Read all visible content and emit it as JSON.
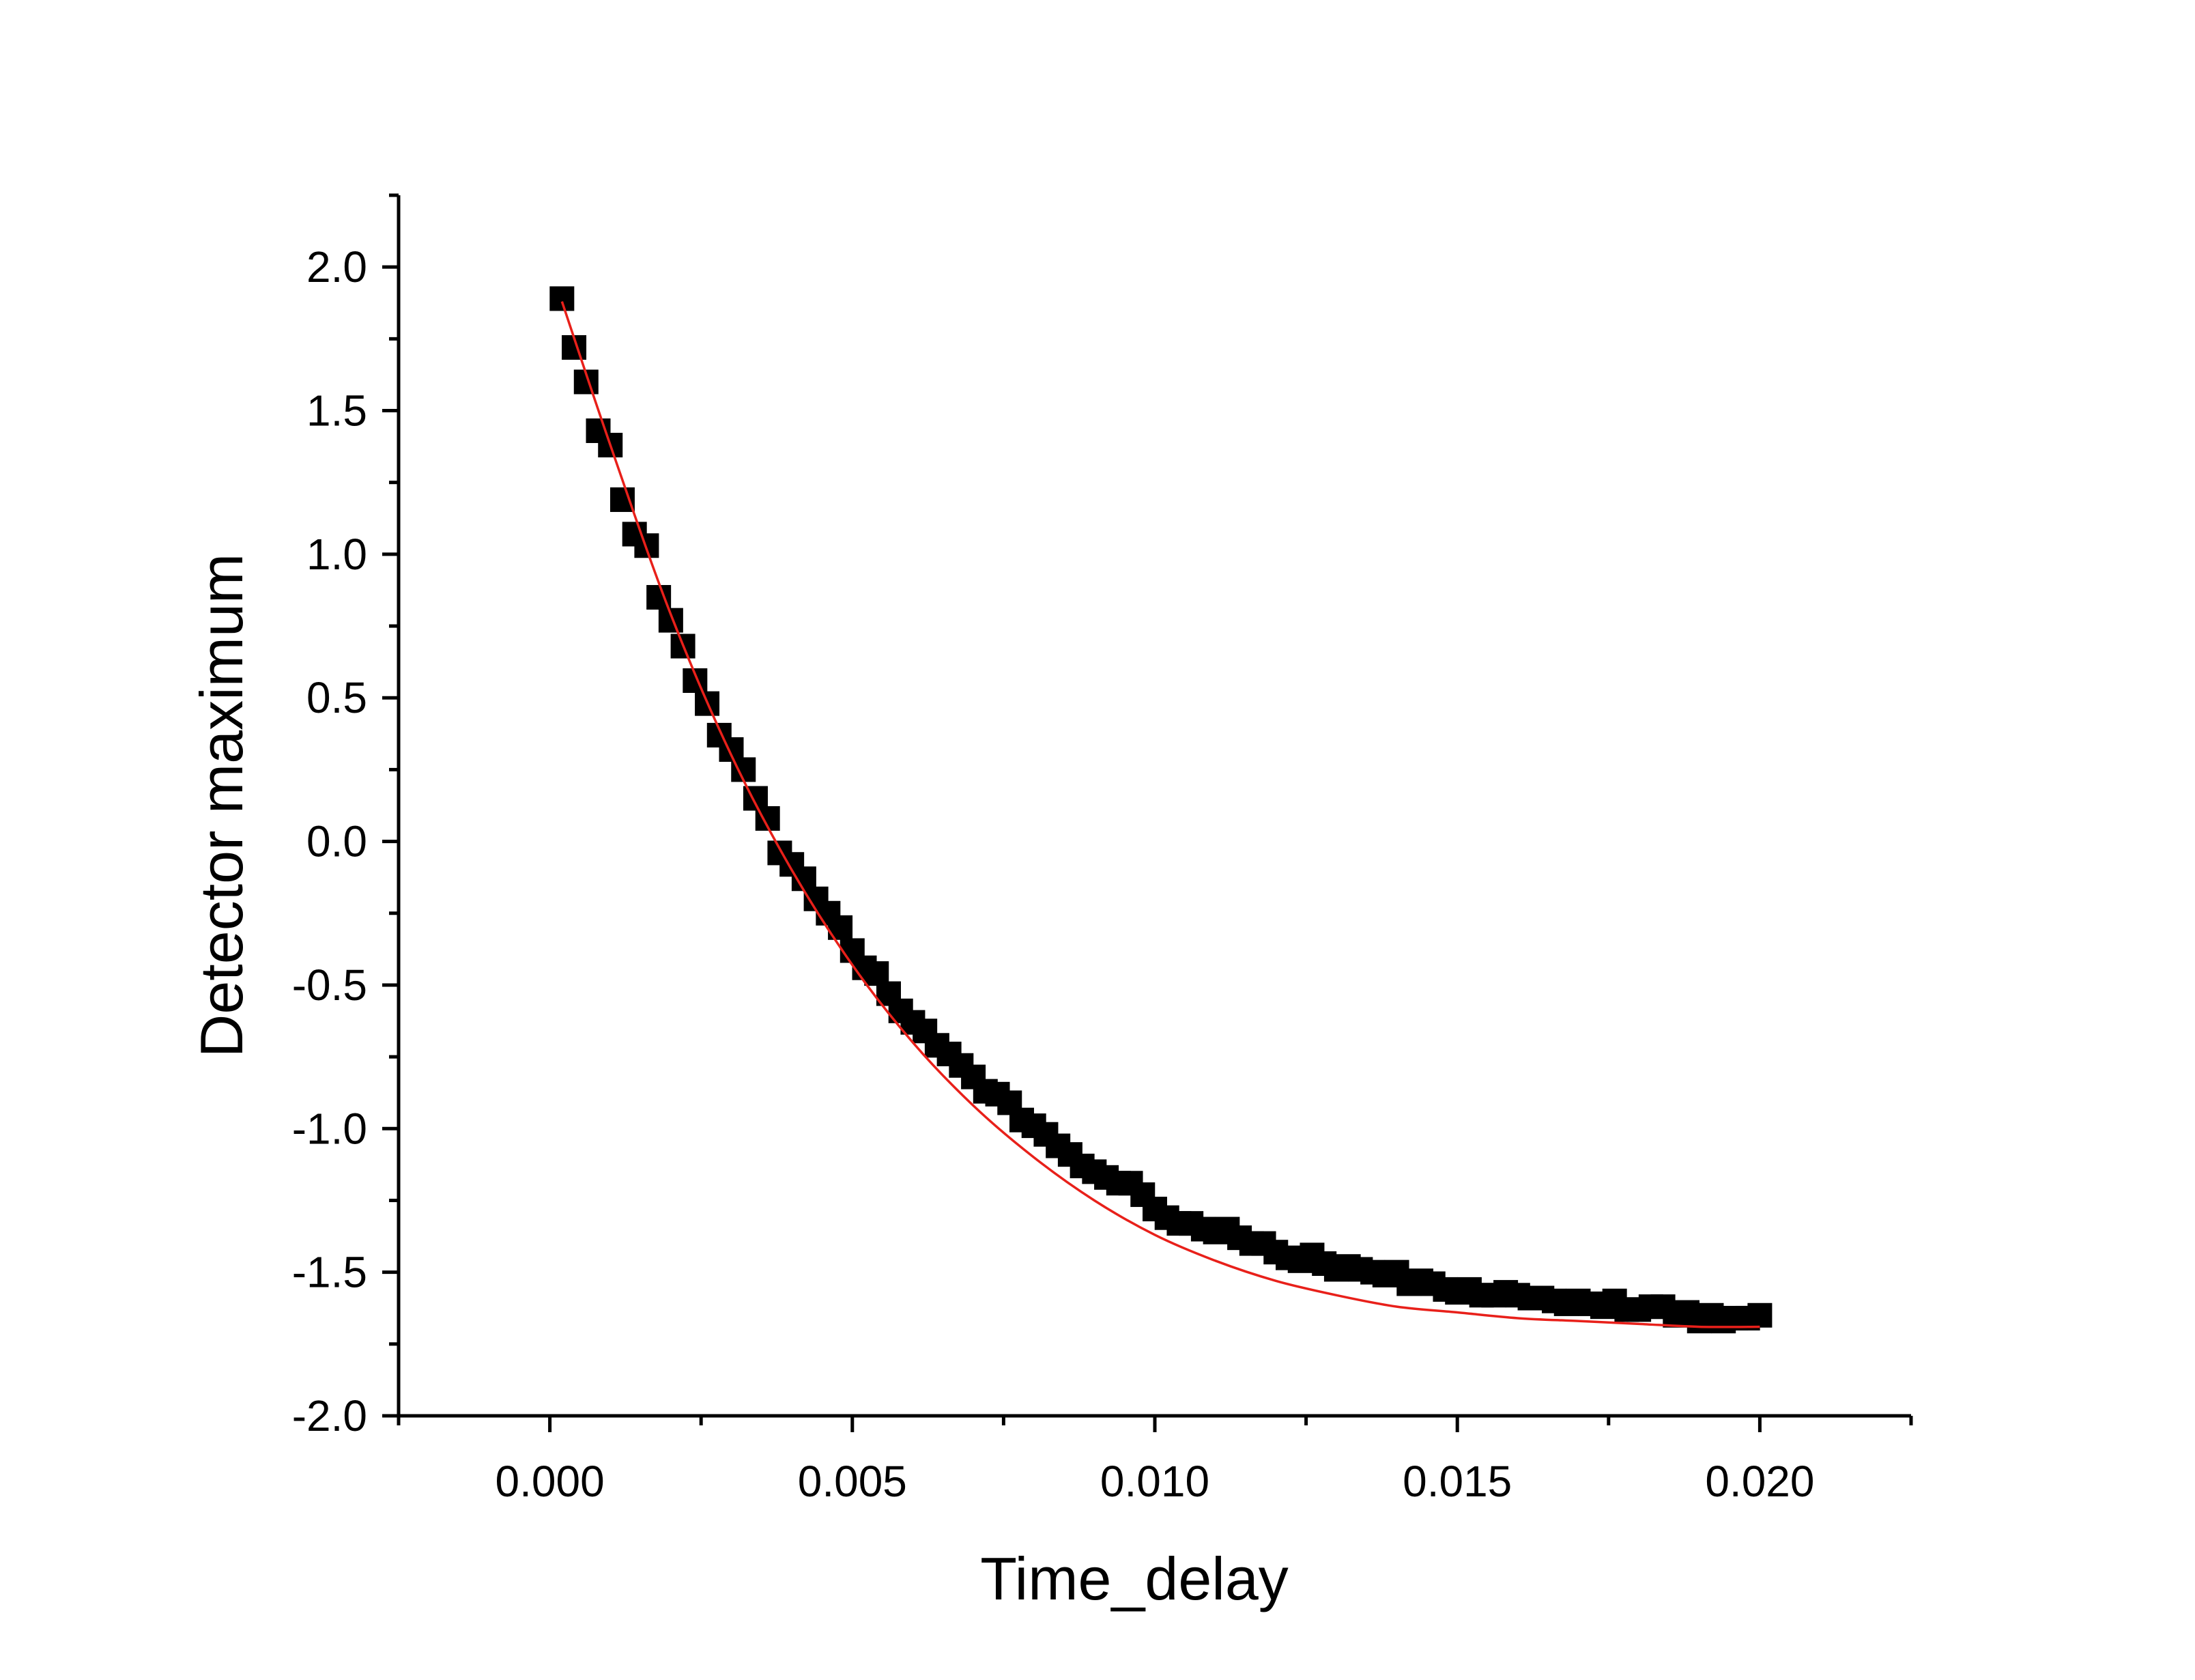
{
  "chart_data": {
    "type": "scatter",
    "title": "",
    "xlabel": "Time_delay",
    "ylabel": "Detector maximum",
    "xlim": [
      -0.0025,
      0.0225
    ],
    "ylim": [
      -2.0,
      2.25
    ],
    "x_ticks": [
      0.0,
      0.005,
      0.01,
      0.015,
      0.02
    ],
    "x_tick_labels": [
      "0.000",
      "0.005",
      "0.010",
      "0.015",
      "0.020"
    ],
    "y_ticks": [
      -2.0,
      -1.5,
      -1.0,
      -0.5,
      0.0,
      0.5,
      1.0,
      1.5,
      2.0
    ],
    "y_tick_labels": [
      "-2.0",
      "-1.5",
      "-1.0",
      "-0.5",
      "0.0",
      "0.5",
      "1.0",
      "1.5",
      "2.0"
    ],
    "grid": false,
    "legend": "none",
    "series": [
      {
        "kind": "scatter",
        "marker": "square",
        "color": "#000000",
        "x": [
          0.0002,
          0.0004,
          0.0006,
          0.0008,
          0.001,
          0.0012,
          0.0014,
          0.0016,
          0.0018,
          0.002,
          0.0022,
          0.0024,
          0.0026,
          0.0028,
          0.003,
          0.0032,
          0.0034,
          0.0036,
          0.0038,
          0.004,
          0.0042,
          0.0044,
          0.0046,
          0.0048,
          0.005,
          0.0052,
          0.0054,
          0.0056,
          0.0058,
          0.006,
          0.0062,
          0.0064,
          0.0066,
          0.0068,
          0.007,
          0.0072,
          0.0074,
          0.0076,
          0.0078,
          0.008,
          0.0082,
          0.0084,
          0.0086,
          0.0088,
          0.009,
          0.0092,
          0.0094,
          0.0096,
          0.0098,
          0.01,
          0.0102,
          0.0104,
          0.0106,
          0.0108,
          0.011,
          0.0112,
          0.0114,
          0.0116,
          0.0118,
          0.012,
          0.0122,
          0.0124,
          0.0126,
          0.0128,
          0.013,
          0.0132,
          0.0134,
          0.0136,
          0.0138,
          0.014,
          0.0142,
          0.0144,
          0.0146,
          0.0148,
          0.015,
          0.0152,
          0.0154,
          0.0156,
          0.0158,
          0.016,
          0.0162,
          0.0164,
          0.0166,
          0.0168,
          0.017,
          0.0172,
          0.0174,
          0.0176,
          0.0178,
          0.018,
          0.0182,
          0.0184,
          0.0186,
          0.0188,
          0.019,
          0.0192,
          0.0194,
          0.0196,
          0.0198,
          0.02
        ],
        "y": [
          1.89,
          1.72,
          1.6,
          1.43,
          1.38,
          1.19,
          1.07,
          1.03,
          0.85,
          0.77,
          0.68,
          0.56,
          0.48,
          0.37,
          0.32,
          0.25,
          0.15,
          0.08,
          -0.04,
          -0.08,
          -0.13,
          -0.2,
          -0.25,
          -0.3,
          -0.38,
          -0.44,
          -0.46,
          -0.53,
          -0.59,
          -0.63,
          -0.66,
          -0.71,
          -0.74,
          -0.78,
          -0.82,
          -0.87,
          -0.88,
          -0.91,
          -0.97,
          -0.99,
          -1.02,
          -1.06,
          -1.09,
          -1.13,
          -1.15,
          -1.17,
          -1.19,
          -1.19,
          -1.23,
          -1.28,
          -1.31,
          -1.33,
          -1.33,
          -1.35,
          -1.36,
          -1.35,
          -1.38,
          -1.4,
          -1.4,
          -1.43,
          -1.45,
          -1.46,
          -1.44,
          -1.47,
          -1.49,
          -1.48,
          -1.49,
          -1.5,
          -1.51,
          -1.5,
          -1.54,
          -1.53,
          -1.54,
          -1.56,
          -1.57,
          -1.56,
          -1.58,
          -1.58,
          -1.57,
          -1.58,
          -1.59,
          -1.59,
          -1.6,
          -1.61,
          -1.6,
          -1.61,
          -1.62,
          -1.6,
          -1.63,
          -1.63,
          -1.62,
          -1.62,
          -1.65,
          -1.64,
          -1.67,
          -1.65,
          -1.67,
          -1.66,
          -1.66,
          -1.65
        ]
      },
      {
        "kind": "fit-line",
        "color": "#e8201a",
        "x": [
          0.0002,
          0.001,
          0.002,
          0.003,
          0.004,
          0.005,
          0.006,
          0.007,
          0.008,
          0.009,
          0.01,
          0.011,
          0.012,
          0.013,
          0.014,
          0.015,
          0.016,
          0.017,
          0.018,
          0.019,
          0.02
        ],
        "y": [
          1.88,
          1.38,
          0.79,
          0.3,
          -0.1,
          -0.43,
          -0.7,
          -0.92,
          -1.1,
          -1.25,
          -1.37,
          -1.46,
          -1.53,
          -1.58,
          -1.62,
          -1.64,
          -1.66,
          -1.67,
          -1.68,
          -1.69,
          -1.69
        ]
      }
    ]
  }
}
